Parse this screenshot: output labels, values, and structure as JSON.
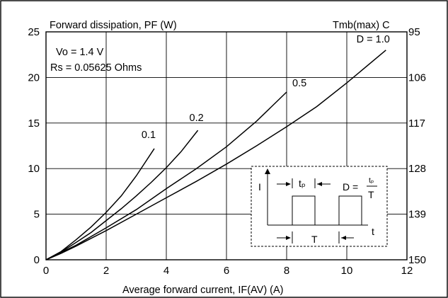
{
  "chart_data": {
    "type": "line",
    "title": "Forward dissipation, PF (W)",
    "right_axis_title": "Tmb(max) C",
    "xlabel": "Average forward current, IF(AV) (A)",
    "xlim": [
      0,
      12
    ],
    "ylim": [
      0,
      25
    ],
    "x_ticks": [
      "0",
      "2",
      "4",
      "6",
      "8",
      "10",
      "12"
    ],
    "y_ticks": [
      "0",
      "5",
      "10",
      "15",
      "20",
      "25"
    ],
    "right_ticks": [
      "95",
      "106",
      "117",
      "128",
      "139",
      "150"
    ],
    "grid": true,
    "annotations": {
      "vo": "Vo = 1.4 V",
      "rs": "Rs = 0.05625 Ohms"
    },
    "series": [
      {
        "name": "0.1",
        "label": "0.1",
        "x": [
          0,
          0.5,
          1.0,
          1.5,
          2.0,
          2.5,
          3.0,
          3.6
        ],
        "y": [
          0,
          0.9,
          2.2,
          3.6,
          5.2,
          7.0,
          9.2,
          12.2
        ]
      },
      {
        "name": "0.2",
        "label": "0.2",
        "x": [
          0,
          0.5,
          1.0,
          1.5,
          2.0,
          2.5,
          3.0,
          3.5,
          4.0,
          4.5,
          5.05
        ],
        "y": [
          0,
          0.85,
          1.9,
          3.0,
          4.3,
          5.6,
          7.0,
          8.5,
          10.1,
          11.9,
          14.2
        ]
      },
      {
        "name": "0.5",
        "label": "0.5",
        "x": [
          0,
          0.5,
          1.0,
          2.0,
          3.0,
          4.0,
          5.0,
          6.0,
          7.0,
          8.0
        ],
        "y": [
          0,
          0.8,
          1.6,
          3.5,
          5.5,
          7.8,
          10.0,
          12.4,
          15.2,
          18.4
        ]
      },
      {
        "name": "D = 1.0",
        "label": "D = 1.0",
        "x": [
          0,
          0.5,
          1.0,
          2.0,
          3.0,
          4.0,
          5.0,
          6.0,
          7.0,
          8.0,
          9.0,
          10.0,
          11.3
        ],
        "y": [
          0,
          0.7,
          1.5,
          3.2,
          5.0,
          6.8,
          8.6,
          10.5,
          12.5,
          14.6,
          16.8,
          19.4,
          23.0
        ]
      }
    ],
    "inset": {
      "i_label": "I",
      "tp_label": "tₚ",
      "d_label": "D =",
      "d_num": "tₚ",
      "d_den": "T",
      "t_period": "T",
      "t_axis": "t"
    }
  }
}
